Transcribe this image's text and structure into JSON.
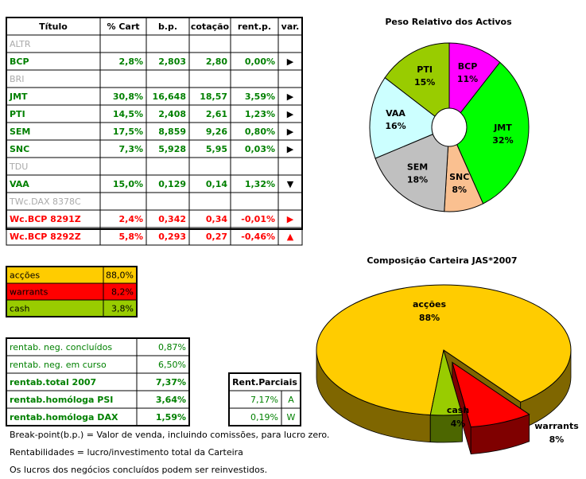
{
  "chart_data": [
    {
      "type": "pie",
      "title": "Peso Relativo dos Activos",
      "categories": [
        "BCP",
        "JMT",
        "SNC",
        "SEM",
        "VAA",
        "PTI"
      ],
      "values": [
        11,
        32,
        8,
        18,
        16,
        15
      ],
      "value_labels": [
        "11%",
        "32%",
        "8%",
        "18%",
        "16%",
        "15%"
      ],
      "colors": [
        "#ff00ff",
        "#00ff00",
        "#fac090",
        "#c0c0c0",
        "#ccffff",
        "#99cc00"
      ]
    },
    {
      "type": "pie3d",
      "title": "Composição Carteira JAS*2007",
      "categories": [
        "acções",
        "warrants",
        "cash"
      ],
      "values": [
        88,
        8,
        4
      ],
      "value_labels": [
        "88%",
        "8%",
        "4%"
      ],
      "colors": [
        "#ffcc00",
        "#ff0000",
        "#99cc00"
      ]
    }
  ],
  "holdings": {
    "header": [
      "Título",
      "% Cart",
      "b.p.",
      "cotação",
      "rent.p.",
      "var."
    ],
    "rows": [
      [
        "ALTR"
      ],
      [
        "BCP",
        "2,8%",
        "2,803",
        "2,80",
        "0,00%",
        "▶"
      ],
      [
        "BRI"
      ],
      [
        "JMT",
        "30,8%",
        "16,648",
        "18,57",
        "3,59%",
        "▶"
      ],
      [
        "PTI",
        "14,5%",
        "2,408",
        "2,61",
        "1,23%",
        "▶"
      ],
      [
        "SEM",
        "17,5%",
        "8,859",
        "9,26",
        "0,80%",
        "▶"
      ],
      [
        "SNC",
        "7,3%",
        "5,928",
        "5,95",
        "0,03%",
        "▶"
      ],
      [
        "TDU"
      ],
      [
        "VAA",
        "15,0%",
        "0,129",
        "0,14",
        "1,32%",
        "▼"
      ],
      [
        "TWc.DAX 8378C"
      ],
      [
        "Wc.BCP 8291Z",
        "2,4%",
        "0,342",
        "0,34",
        "-0,01%",
        "▶"
      ],
      [
        "Wc.BCP 8292Z",
        "5,8%",
        "0,293",
        "0,27",
        "-0,46%",
        "▲"
      ]
    ]
  },
  "allocation": {
    "rows": [
      [
        "acções",
        "88,0%"
      ],
      [
        "warrants",
        "8,2%"
      ],
      [
        "cash",
        "3,8%"
      ]
    ]
  },
  "returns": {
    "rows": [
      [
        "rentab. neg. concluídos",
        "0,87%"
      ],
      [
        "rentab. neg. em curso",
        "6,50%"
      ],
      [
        "rentab.total 2007",
        "7,37%"
      ],
      [
        "rentab.homóloga PSI",
        "3,64%"
      ],
      [
        "rentab.homóloga DAX",
        "1,59%"
      ]
    ]
  },
  "partial": {
    "header": "Rent.Parciais",
    "rows": [
      [
        "7,17%",
        "A"
      ],
      [
        "0,19%",
        "W"
      ]
    ]
  },
  "notes": [
    "Break-point(b.p.) = Valor de venda, incluindo comissões, para lucro zero.",
    "Rentabilidades = lucro/investimento total da Carteira",
    "Os lucros dos negócios concluídos podem ser reinvestidos."
  ]
}
